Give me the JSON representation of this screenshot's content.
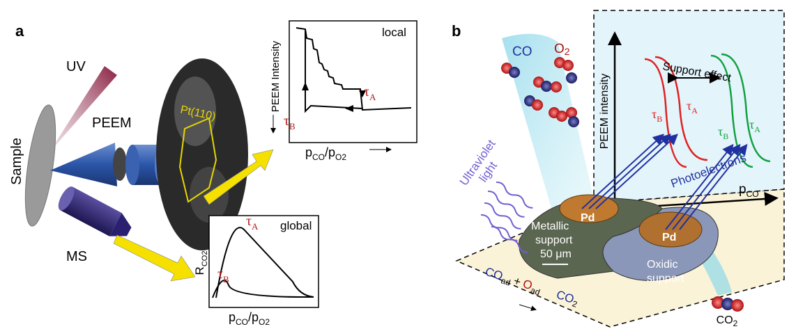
{
  "panel_a": {
    "label": "a",
    "uv": "UV",
    "sample": "Sample",
    "peem": "PEEM",
    "ms": "MS",
    "crystal": "Pt(110)",
    "local_plot": {
      "tag": "local",
      "ylabel": "PEEM Intensity",
      "tau_a": {
        "main": "τ",
        "sub": "A"
      },
      "tau_b": {
        "main": "τ",
        "sub": "B"
      },
      "xlabel": {
        "p1": "p",
        "s1": "CO",
        "slash": "/",
        "p2": "p",
        "s2": "O2"
      }
    },
    "global_plot": {
      "tag": "global",
      "ylabel": {
        "main": "R",
        "sub": "CO2"
      },
      "tau_a": {
        "main": "τ",
        "sub": "A"
      },
      "tau_b": {
        "main": "τ",
        "sub": "B"
      },
      "xlabel": {
        "p1": "p",
        "s1": "CO",
        "slash": "/",
        "p2": "p",
        "s2": "O2"
      }
    }
  },
  "panel_b": {
    "label": "b",
    "co": "CO",
    "o2": {
      "main": "O",
      "sub": "2"
    },
    "support_effect": "Support effect",
    "ylabel": "PEEM intensity",
    "red_tau_b": {
      "main": "τ",
      "sub": "B"
    },
    "red_tau_a": {
      "main": "τ",
      "sub": "A"
    },
    "green_tau_b": {
      "main": "τ",
      "sub": "B"
    },
    "green_tau_a": {
      "main": "τ",
      "sub": "A"
    },
    "photoelectrons": "Photoelectrons",
    "xlabel": {
      "main": "p",
      "sub": "CO"
    },
    "uv_light": [
      "Ultraviolet",
      "light"
    ],
    "pd_left": "Pd",
    "pd_right": "Pd",
    "metallic": [
      "Metallic",
      "support"
    ],
    "scale": "50 μm",
    "oxidic": [
      "Oxidic",
      "support"
    ],
    "reaction": {
      "co": "CO",
      "co_sub": "ad",
      "plus": "+",
      "o": "O",
      "o_sub": "ad",
      "co2": "CO",
      "co2_sub": "2"
    },
    "co2": {
      "main": "CO",
      "sub": "2"
    }
  }
}
